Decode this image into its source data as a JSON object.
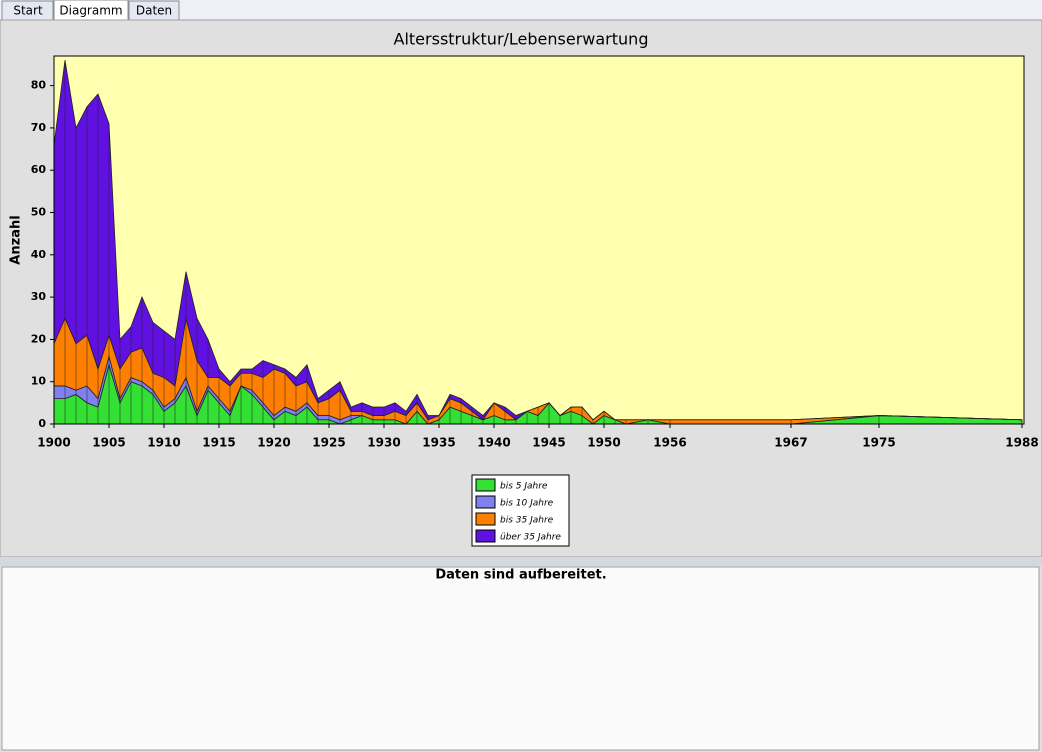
{
  "tabs": [
    "Start",
    "Diagramm",
    "Daten"
  ],
  "status": "Daten sind aufbereitet.",
  "chart_data": {
    "type": "stacked-area",
    "title": "Altersstruktur/Lebenserwartung",
    "y_label": "Anzahl",
    "x": [
      1900,
      1901,
      1902,
      1903,
      1904,
      1905,
      1906,
      1907,
      1908,
      1909,
      1910,
      1911,
      1912,
      1913,
      1914,
      1915,
      1916,
      1917,
      1918,
      1919,
      1920,
      1921,
      1922,
      1923,
      1924,
      1925,
      1926,
      1927,
      1928,
      1929,
      1930,
      1931,
      1932,
      1933,
      1934,
      1935,
      1936,
      1937,
      1938,
      1939,
      1940,
      1941,
      1942,
      1943,
      1944,
      1945,
      1946,
      1947,
      1948,
      1949,
      1950,
      1951,
      1952,
      1954,
      1956,
      1967,
      1975,
      1988
    ],
    "series": [
      {
        "name": "bis 5 Jahre",
        "color": "#33e033",
        "values": [
          6,
          6,
          7,
          5,
          4,
          14,
          5,
          10,
          9,
          7,
          3,
          5,
          9,
          2,
          8,
          5,
          2,
          9,
          7,
          4,
          1,
          3,
          2,
          4,
          1,
          1,
          0,
          1,
          2,
          1,
          1,
          1,
          0,
          3,
          0,
          1,
          4,
          3,
          2,
          1,
          2,
          1,
          1,
          3,
          2,
          5,
          2,
          3,
          2,
          0,
          2,
          1,
          0,
          1,
          0,
          0,
          2,
          1
        ]
      },
      {
        "name": "bis 10 Jahre",
        "color": "#8080f0",
        "values": [
          3,
          3,
          1,
          4,
          2,
          2,
          1,
          1,
          1,
          1,
          1,
          1,
          2,
          1,
          1,
          1,
          1,
          0,
          1,
          1,
          1,
          1,
          1,
          1,
          1,
          1,
          1,
          1,
          0,
          0,
          0,
          0,
          0,
          0,
          0,
          0,
          0,
          0,
          0,
          0,
          0,
          0,
          0,
          0,
          0,
          0,
          0,
          0,
          0,
          0,
          0,
          0,
          0,
          0,
          0,
          0,
          0,
          0
        ]
      },
      {
        "name": "bis 35 Jahre",
        "color": "#ff8000",
        "values": [
          10,
          16,
          11,
          12,
          7,
          5,
          7,
          6,
          8,
          4,
          7,
          3,
          14,
          12,
          2,
          5,
          6,
          3,
          4,
          6,
          11,
          8,
          6,
          5,
          3,
          4,
          7,
          1,
          1,
          1,
          1,
          2,
          2,
          2,
          1,
          1,
          2,
          2,
          1,
          0,
          3,
          2,
          0,
          0,
          2,
          0,
          0,
          1,
          2,
          1,
          1,
          0,
          1,
          0,
          1,
          1,
          0,
          0
        ]
      },
      {
        "name": "über 35 Jahre",
        "color": "#6010e0",
        "values": [
          47,
          61,
          51,
          54,
          65,
          50,
          7,
          6,
          12,
          12,
          11,
          11,
          11,
          10,
          9,
          2,
          1,
          1,
          1,
          4,
          1,
          1,
          2,
          4,
          1,
          2,
          2,
          1,
          2,
          2,
          2,
          2,
          1,
          2,
          1,
          0,
          1,
          1,
          1,
          1,
          0,
          1,
          1,
          0,
          0,
          0,
          0,
          0,
          0,
          0,
          0,
          0,
          0,
          0,
          0,
          0,
          0,
          0
        ]
      }
    ],
    "xlim": [
      1900,
      1988
    ],
    "xticks": [
      1900,
      1905,
      1910,
      1915,
      1920,
      1925,
      1930,
      1935,
      1940,
      1945,
      1950,
      1956,
      1967,
      1975,
      1988
    ],
    "ylim": [
      0,
      87
    ],
    "yticks": [
      0,
      10,
      20,
      30,
      40,
      50,
      60,
      70,
      80
    ],
    "background": "#ffffb0"
  }
}
